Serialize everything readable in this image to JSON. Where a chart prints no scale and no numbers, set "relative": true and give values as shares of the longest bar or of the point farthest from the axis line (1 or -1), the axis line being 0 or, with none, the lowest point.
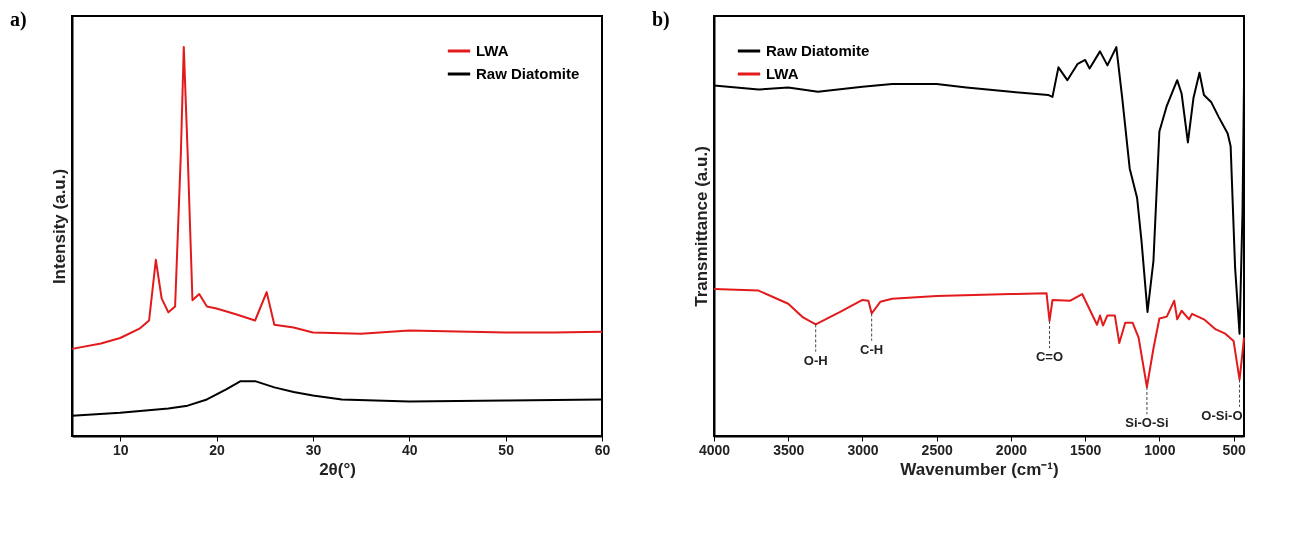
{
  "chart_data": [
    {
      "type": "line",
      "title": "a)",
      "xlabel": "2θ(°)",
      "ylabel": "Intensity (a.u.)",
      "relative": true,
      "legend": "top right",
      "xlim": [
        5,
        60
      ],
      "xticks": [
        10,
        20,
        30,
        40,
        50,
        60
      ],
      "series": [
        {
          "name": "LWA",
          "color": "#e31a1c",
          "x": [
            5,
            8,
            10,
            12,
            13,
            13.7,
            14.3,
            15,
            15.7,
            16.3,
            16.6,
            17,
            17.5,
            18.2,
            19,
            20,
            22,
            24,
            25.2,
            26,
            28,
            30,
            35,
            40,
            45,
            50,
            55,
            60
          ],
          "values": [
            0.224,
            0.238,
            0.252,
            0.276,
            0.297,
            0.453,
            0.354,
            0.318,
            0.333,
            0.729,
            1,
            0.729,
            0.349,
            0.365,
            0.333,
            0.328,
            0.313,
            0.297,
            0.37,
            0.286,
            0.279,
            0.266,
            0.263,
            0.271,
            0.269,
            0.266,
            0.266,
            0.268
          ]
        },
        {
          "name": "Raw Diatomite",
          "color": "#000000",
          "x": [
            5,
            10,
            15,
            17,
            19,
            21,
            22.5,
            24,
            26,
            28,
            30,
            33,
            40,
            50,
            60
          ],
          "values": [
            0.052,
            0.06,
            0.071,
            0.078,
            0.094,
            0.12,
            0.141,
            0.141,
            0.125,
            0.113,
            0.104,
            0.094,
            0.089,
            0.091,
            0.094
          ]
        }
      ]
    },
    {
      "type": "line",
      "title": "b)",
      "xlabel": "Wavenumber (cm⁻¹)",
      "ylabel": "Transmittance (a.u.)",
      "relative": true,
      "legend": "top left",
      "xlim": [
        4000,
        430
      ],
      "xticks": [
        4000,
        3500,
        3000,
        2500,
        2000,
        1500,
        1000,
        500
      ],
      "series": [
        {
          "name": "Raw Diatomite",
          "color": "#000000",
          "x": [
            4000,
            3700,
            3500,
            3300,
            3000,
            2800,
            2500,
            2300,
            2000,
            1750,
            1720,
            1680,
            1620,
            1550,
            1500,
            1470,
            1400,
            1350,
            1290,
            1250,
            1200,
            1150,
            1120,
            1080,
            1040,
            1000,
            950,
            880,
            850,
            808,
            770,
            730,
            700,
            650,
            600,
            540,
            520,
            490,
            460,
            440,
            430
          ],
          "values": [
            0.901,
            0.891,
            0.896,
            0.885,
            0.898,
            0.905,
            0.905,
            0.896,
            0.885,
            0.877,
            0.872,
            0.948,
            0.915,
            0.957,
            0.967,
            0.945,
            0.989,
            0.953,
            1,
            0.868,
            0.688,
            0.612,
            0.5,
            0.319,
            0.45,
            0.783,
            0.849,
            0.915,
            0.88,
            0.755,
            0.87,
            0.934,
            0.877,
            0.858,
            0.82,
            0.778,
            0.745,
            0.433,
            0.263,
            0.575,
            0.905
          ]
        },
        {
          "name": "LWA",
          "color": "#e31a1c",
          "x": [
            4000,
            3700,
            3500,
            3400,
            3315,
            3150,
            3000,
            2960,
            2938,
            2880,
            2800,
            2500,
            2000,
            1760,
            1740,
            1720,
            1600,
            1520,
            1450,
            1420,
            1400,
            1380,
            1350,
            1300,
            1270,
            1230,
            1180,
            1140,
            1084,
            1040,
            1000,
            950,
            900,
            880,
            850,
            800,
            780,
            700,
            620,
            560,
            500,
            460,
            440,
            430
          ],
          "values": [
            0.378,
            0.374,
            0.34,
            0.305,
            0.287,
            0.319,
            0.35,
            0.348,
            0.315,
            0.345,
            0.353,
            0.36,
            0.365,
            0.367,
            0.296,
            0.35,
            0.348,
            0.365,
            0.31,
            0.286,
            0.31,
            0.284,
            0.31,
            0.31,
            0.239,
            0.291,
            0.291,
            0.253,
            0.126,
            0.225,
            0.302,
            0.307,
            0.348,
            0.3,
            0.322,
            0.3,
            0.314,
            0.3,
            0.274,
            0.264,
            0.244,
            0.145,
            0.215,
            0.253
          ]
        }
      ],
      "annotations": [
        {
          "text": "O-H",
          "x": 3315,
          "y": 0.287
        },
        {
          "text": "C-H",
          "x": 2938,
          "y": 0.315
        },
        {
          "text": "C=O",
          "x": 1740,
          "y": 0.296
        },
        {
          "text": "Si-O-Si",
          "x": 1084,
          "y": 0.126
        },
        {
          "text": "O-Si-O",
          "x": 460,
          "y": 0.145
        }
      ]
    }
  ]
}
